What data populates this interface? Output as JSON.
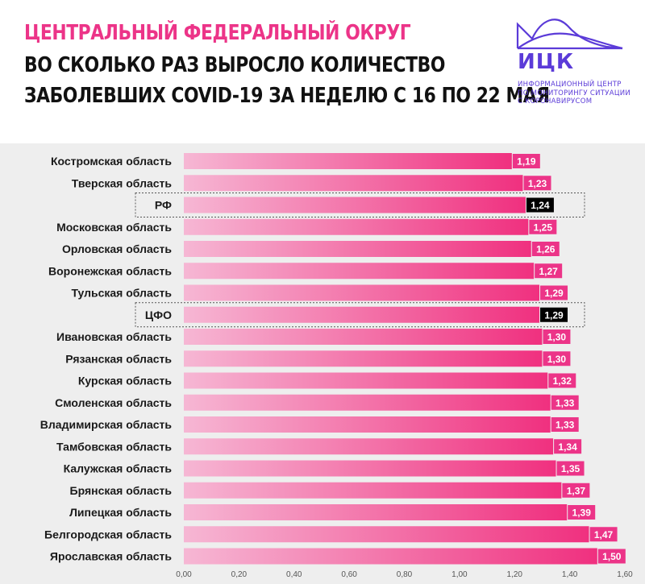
{
  "header": {
    "title_line1": "ЦЕНТРАЛЬНЫЙ ФЕДЕРАЛЬНЫЙ ОКРУГ",
    "title_line2": "ВО СКОЛЬКО РАЗ ВЫРОСЛО КОЛИЧЕСТВО",
    "title_line3": "ЗАБОЛЕВШИХ COVID-19 ЗА НЕДЕЛЮ С 16 ПО 22 МАЯ"
  },
  "logo": {
    "name": "ИЦК",
    "subtitle": [
      "Информационный центр",
      "по мониторингу ситуации",
      "с коронавирусом"
    ]
  },
  "colors": {
    "accent": "#ec3488",
    "bar_start": "#f6b7d4",
    "bar_end": "#f0307f",
    "highlight_label": "#000000",
    "logo": "#5b3bd8"
  },
  "chart_data": {
    "type": "bar",
    "orientation": "horizontal",
    "title": "",
    "xlabel": "",
    "ylabel": "",
    "xlim": [
      0,
      1.6
    ],
    "ticks": [
      "0,00",
      "0,20",
      "0,40",
      "0,60",
      "0,80",
      "1,00",
      "1,20",
      "1,40",
      "1,60"
    ],
    "tick_values": [
      0,
      0.2,
      0.4,
      0.6,
      0.8,
      1.0,
      1.2,
      1.4,
      1.6
    ],
    "grid": false,
    "categories": [
      "Костромская область",
      "Тверская область",
      "РФ",
      "Московская область",
      "Орловская область",
      "Воронежская область",
      "Тульская область",
      "ЦФО",
      "Ивановская область",
      "Рязанская область",
      "Курская область",
      "Смоленская область",
      "Владимирская область",
      "Тамбовская область",
      "Калужская область",
      "Брянская область",
      "Липецкая область",
      "Белгородская область",
      "Ярославская область"
    ],
    "values": [
      1.19,
      1.23,
      1.24,
      1.25,
      1.26,
      1.27,
      1.29,
      1.29,
      1.3,
      1.3,
      1.32,
      1.33,
      1.33,
      1.34,
      1.35,
      1.37,
      1.39,
      1.47,
      1.5
    ],
    "value_labels": [
      "1,19",
      "1,23",
      "1,24",
      "1,25",
      "1,26",
      "1,27",
      "1,29",
      "1,29",
      "1,30",
      "1,30",
      "1,32",
      "1,33",
      "1,33",
      "1,34",
      "1,35",
      "1,37",
      "1,39",
      "1,47",
      "1,50"
    ],
    "highlighted": [
      "РФ",
      "ЦФО"
    ]
  }
}
